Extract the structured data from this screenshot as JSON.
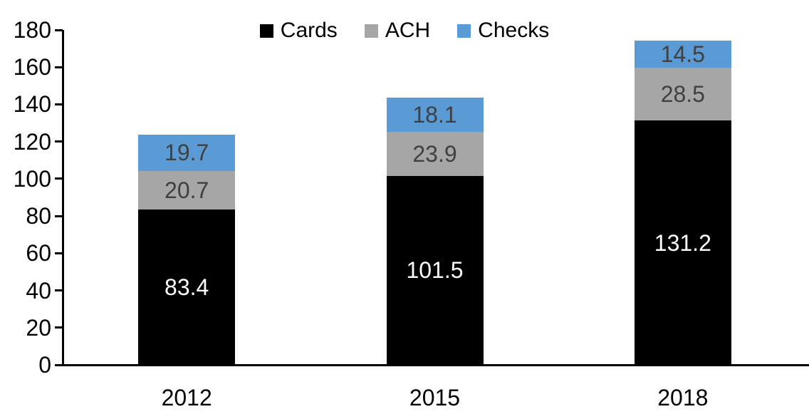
{
  "chart_data": {
    "type": "bar",
    "stacked": true,
    "title": "",
    "xlabel": "",
    "ylabel": "",
    "categories": [
      "2012",
      "2015",
      "2018"
    ],
    "series": [
      {
        "name": "Cards",
        "color": "#000000",
        "label_color": "#ffffff",
        "values": [
          83.4,
          101.5,
          131.2
        ]
      },
      {
        "name": "ACH",
        "color": "#a6a6a6",
        "label_color": "#404040",
        "values": [
          20.7,
          23.9,
          28.5
        ]
      },
      {
        "name": "Checks",
        "color": "#5b9bd5",
        "label_color": "#404040",
        "values": [
          19.7,
          18.1,
          14.5
        ]
      }
    ],
    "ylim": [
      0,
      180
    ],
    "ytick_step": 20,
    "yticks": [
      0,
      20,
      40,
      60,
      80,
      100,
      120,
      140,
      160,
      180
    ],
    "grid": false,
    "legend_position": "top-center",
    "value_labels": "inside-center"
  }
}
